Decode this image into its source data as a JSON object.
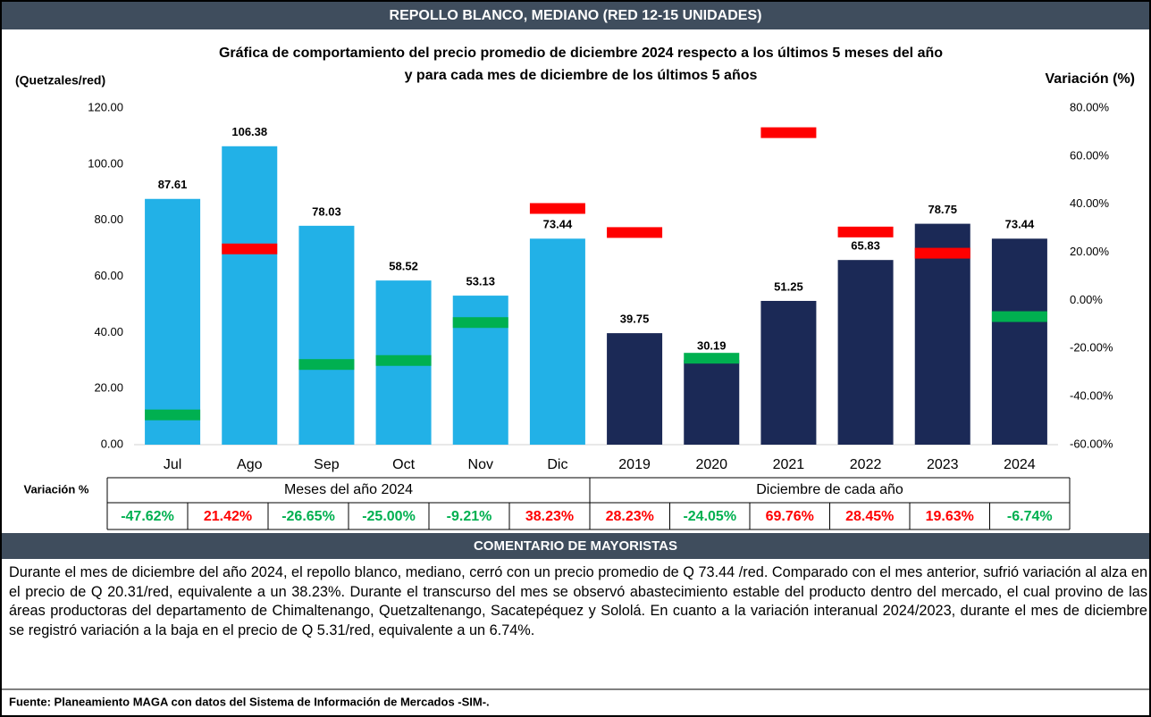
{
  "header": "REPOLLO BLANCO, MEDIANO (RED 12-15 UNIDADES)",
  "chart_data": {
    "type": "bar",
    "title": "Gráfica de comportamiento del precio promedio de diciembre 2024 respecto a los últimos 5 meses del año",
    "subtitle": "y para cada mes de diciembre de los últimos 5 años",
    "ylabel": "(Quetzales/red)",
    "y2label": "Variación (%)",
    "categories": [
      "Jul",
      "Ago",
      "Sep",
      "Oct",
      "Nov",
      "Dic",
      "2019",
      "2020",
      "2021",
      "2022",
      "2023",
      "2024"
    ],
    "series": [
      {
        "name": "Meses del año  2024",
        "color": "#22b1e7",
        "values": [
          87.61,
          106.38,
          78.03,
          58.52,
          53.13,
          73.44,
          null,
          null,
          null,
          null,
          null,
          null
        ]
      },
      {
        "name": "Diciembre de cada año",
        "color": "#1b2956",
        "values": [
          null,
          null,
          null,
          null,
          null,
          null,
          39.75,
          30.19,
          51.25,
          65.83,
          78.75,
          73.44
        ]
      }
    ],
    "variation": {
      "label": "Variación %",
      "axis": "y2",
      "positive_color": "#ff0000",
      "negative_color": "#00b050",
      "values": [
        -47.62,
        21.42,
        -26.65,
        -25.0,
        -9.21,
        38.23,
        28.23,
        -24.05,
        69.76,
        28.45,
        19.63,
        -6.74
      ],
      "value_labels": [
        "-47.62%",
        "21.42%",
        "-26.65%",
        "-25.00%",
        "-9.21%",
        "38.23%",
        "28.23%",
        "-24.05%",
        "69.76%",
        "28.45%",
        "19.63%",
        "-6.74%"
      ]
    },
    "ylim": [
      0,
      120
    ],
    "yticks": [
      {
        "value": 0,
        "label": "0.00"
      },
      {
        "value": 20,
        "label": "20.00"
      },
      {
        "value": 40,
        "label": "40.00"
      },
      {
        "value": 60,
        "label": "60.00"
      },
      {
        "value": 80,
        "label": "80.00"
      },
      {
        "value": 100,
        "label": "100.00"
      },
      {
        "value": 120,
        "label": "120.00"
      }
    ],
    "y2lim": [
      -60,
      80
    ],
    "y2ticks": [
      {
        "value": -60,
        "label": "-60.00%"
      },
      {
        "value": -40,
        "label": "-40.00%"
      },
      {
        "value": -20,
        "label": "-20.00%"
      },
      {
        "value": 0,
        "label": "0.00%"
      },
      {
        "value": 20,
        "label": "20.00%"
      },
      {
        "value": 40,
        "label": "40.00%"
      },
      {
        "value": 60,
        "label": "60.00%"
      },
      {
        "value": 80,
        "label": "80.00%"
      }
    ]
  },
  "comment_title": "COMENTARIO DE MAYORISTAS",
  "comment": "Durante el mes de diciembre del año 2024, el repollo blanco, mediano, cerró con un precio promedio de Q 73.44 /red. Comparado con el mes anterior, sufrió variación al alza en el precio de Q 20.31/red, equivalente a un 38.23%. Durante el transcurso del mes se observó abastecimiento estable del producto dentro del mercado, el cual provino de las áreas productoras del departamento de Chimaltenango, Quetzaltenango, Sacatepéquez y Sololá. En cuanto a la variación interanual 2024/2023, durante el mes de diciembre se registró variación a la baja en el precio de Q 5.31/red, equivalente a un 6.74%.",
  "source": "Fuente: Planeamiento MAGA con datos del  Sistema de Información de Mercados -SIM-."
}
